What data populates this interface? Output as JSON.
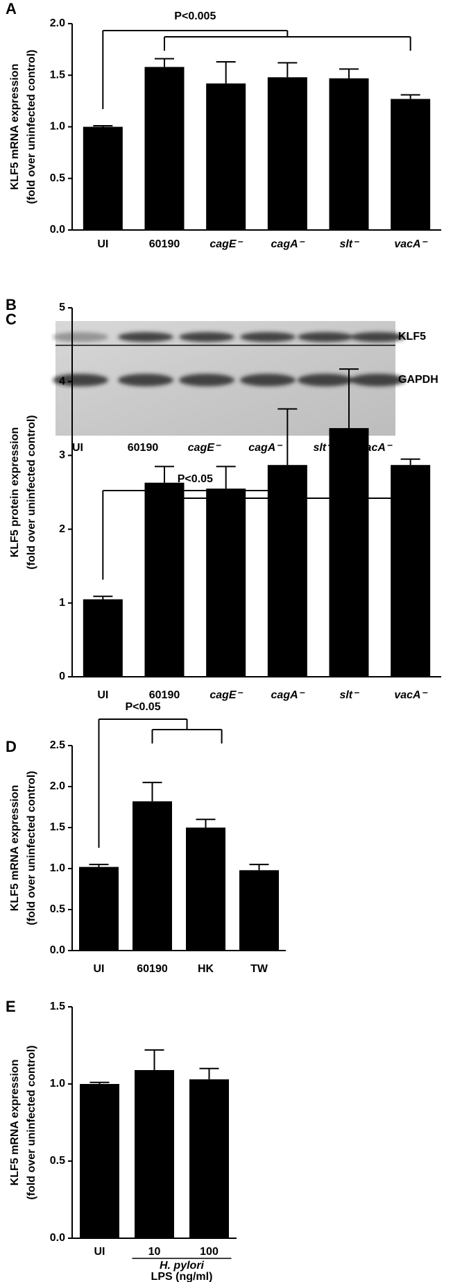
{
  "chart_data": [
    {
      "type": "bar",
      "panel": "A",
      "color": "#000000",
      "y_label": [
        "KLF5 mRNA expression",
        "(fold over uninfected control)"
      ],
      "categories": [
        "UI",
        "60190",
        "cagE⁻",
        "cagA⁻",
        "slt⁻",
        "vacA⁻"
      ],
      "italic_categories": [
        false,
        false,
        true,
        true,
        true,
        true
      ],
      "values": [
        1.0,
        1.58,
        1.42,
        1.48,
        1.47,
        1.27
      ],
      "errors": [
        0.01,
        0.08,
        0.21,
        0.14,
        0.09,
        0.04
      ],
      "ylim": [
        0,
        2.0
      ],
      "yticks": [
        {
          "value": 0,
          "label": "0.0"
        },
        {
          "value": 0.5,
          "label": "0.5"
        },
        {
          "value": 1,
          "label": "1.0"
        },
        {
          "value": 1.5,
          "label": "1.5"
        },
        {
          "value": 2,
          "label": "2.0"
        }
      ],
      "annotation": "P<0.005"
    },
    {
      "type": "blot",
      "panel": "B",
      "lanes": [
        "UI",
        "60190",
        "cagE⁻",
        "cagA⁻",
        "slt⁻",
        "vacA⁻"
      ],
      "italic_lanes": [
        false,
        false,
        true,
        true,
        true,
        true
      ],
      "bands": [
        "KLF5",
        "GAPDH"
      ]
    },
    {
      "type": "bar",
      "panel": "C",
      "color": "#000000",
      "y_label": [
        "KLF5 protein expression",
        "(fold over uninfected control)"
      ],
      "categories": [
        "UI",
        "60190",
        "cagE⁻",
        "cagA⁻",
        "slt⁻",
        "vacA⁻"
      ],
      "italic_categories": [
        false,
        false,
        true,
        true,
        true,
        true
      ],
      "values": [
        1.05,
        2.63,
        2.55,
        2.87,
        3.37,
        2.87
      ],
      "errors": [
        0.04,
        0.22,
        0.3,
        0.76,
        0.8,
        0.08
      ],
      "ylim": [
        0,
        5
      ],
      "yticks": [
        0,
        1,
        2,
        3,
        4,
        5
      ],
      "annotation": "P<0.05"
    },
    {
      "type": "bar",
      "panel": "D",
      "color": "#000000",
      "y_label": [
        "KLF5 mRNA expression",
        "(fold over uninfected control)"
      ],
      "categories": [
        "UI",
        "60190",
        "HK",
        "TW"
      ],
      "italic_categories": [
        false,
        false,
        false,
        false
      ],
      "values": [
        1.02,
        1.82,
        1.5,
        0.98
      ],
      "errors": [
        0.03,
        0.23,
        0.1,
        0.07
      ],
      "ylim": [
        0,
        2.5
      ],
      "yticks": [
        {
          "value": 0,
          "label": "0.0"
        },
        {
          "value": 0.5,
          "label": "0.5"
        },
        {
          "value": 1,
          "label": "1.0"
        },
        {
          "value": 1.5,
          "label": "1.5"
        },
        {
          "value": 2,
          "label": "2.0"
        },
        {
          "value": 2.5,
          "label": "2.5"
        }
      ],
      "annotation": "P<0.05"
    },
    {
      "type": "bar",
      "panel": "E",
      "color": "#000000",
      "y_label": [
        "KLF5 mRNA expression",
        "(fold over uninfected control)"
      ],
      "categories": [
        "UI",
        "10",
        "100"
      ],
      "italic_categories": [
        false,
        false,
        false
      ],
      "values": [
        1.0,
        1.09,
        1.03
      ],
      "errors": [
        0.01,
        0.13,
        0.07
      ],
      "ylim": [
        0,
        1.5
      ],
      "yticks": [
        {
          "value": 0,
          "label": "0.0"
        },
        {
          "value": 0.5,
          "label": "0.5"
        },
        {
          "value": 1,
          "label": "1.0"
        },
        {
          "value": 1.5,
          "label": "1.5"
        }
      ],
      "group_label": [
        "H. pylori",
        "LPS (ng/ml)"
      ]
    }
  ]
}
